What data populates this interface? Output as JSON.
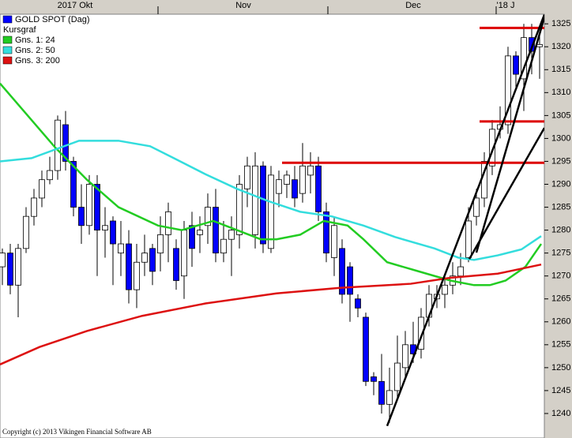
{
  "chart_data": {
    "type": "candlestick",
    "xlim": [
      -0.3,
      68.6
    ],
    "ylim": [
      1235.0,
      1327.1
    ],
    "yticks": [
      1240,
      1245,
      1250,
      1255,
      1260,
      1265,
      1270,
      1275,
      1280,
      1285,
      1290,
      1295,
      1300,
      1305,
      1310,
      1315,
      1320,
      1325
    ],
    "xticks": [
      19.7,
      41.2,
      62.5
    ],
    "month_labels": [
      {
        "value": 9.2,
        "label": "2017 Okt"
      },
      {
        "value": 30.5,
        "label": "Nov"
      },
      {
        "value": 52,
        "label": "Dec"
      },
      {
        "value": 63.7,
        "label": "'18 J"
      }
    ],
    "series": [
      {
        "name": "GOLD SPOT (Dag)",
        "color": "#0000ff",
        "up_color": "#ffffff",
        "open": [
          1272,
          1275,
          1268,
          1276,
          1283,
          1287,
          1291,
          1293,
          1303,
          1295,
          1285,
          1281,
          1290,
          1280,
          1282,
          1275,
          1277,
          1267,
          1273,
          1276,
          1275,
          1279,
          1276,
          1270,
          1281,
          1279,
          1281,
          1285,
          1275,
          1278,
          1279,
          1289,
          1279,
          1294,
          1276,
          1288,
          1290,
          1291,
          1288,
          1292,
          1294,
          1284,
          1274,
          1276,
          1272,
          1265,
          1261,
          1248,
          1247,
          1242,
          1245,
          1250,
          1255,
          1254,
          1261,
          1265,
          1266,
          1268,
          1270,
          1274,
          1283,
          1287,
          1294,
          1302,
          1303,
          1318,
          1313,
          1322,
          1320
        ],
        "high": [
          1276,
          1277,
          1277,
          1285,
          1289,
          1293,
          1296,
          1305,
          1306,
          1296,
          1290,
          1292,
          1292,
          1285,
          1283,
          1282,
          1280,
          1277,
          1279,
          1277,
          1283,
          1286,
          1278,
          1282,
          1284,
          1283,
          1288,
          1289,
          1282,
          1283,
          1292,
          1296,
          1297,
          1295,
          1294,
          1293,
          1293,
          1294,
          1299,
          1297,
          1296,
          1286,
          1283,
          1278,
          1273,
          1266,
          1262,
          1249,
          1253,
          1250,
          1257,
          1258,
          1260,
          1263,
          1268,
          1268,
          1270,
          1273,
          1275,
          1285,
          1289,
          1297,
          1304,
          1307,
          1320,
          1319,
          1325,
          1325,
          1323
        ],
        "low": [
          1268,
          1266,
          1261,
          1275,
          1281,
          1285,
          1290,
          1291,
          1293,
          1283,
          1277,
          1279,
          1270,
          1274,
          1268,
          1270,
          1264,
          1263,
          1270,
          1268,
          1271,
          1273,
          1267,
          1265,
          1272,
          1275,
          1277,
          1273,
          1273,
          1270,
          1276,
          1285,
          1276,
          1275,
          1275,
          1285,
          1287,
          1285,
          1286,
          1288,
          1282,
          1273,
          1270,
          1264,
          1260,
          1261,
          1246,
          1244,
          1240,
          1238,
          1243,
          1248,
          1251,
          1252,
          1259,
          1263,
          1263,
          1266,
          1268,
          1273,
          1281,
          1285,
          1292,
          1300,
          1301,
          1311,
          1306,
          1314,
          1313
        ],
        "close": [
          1275,
          1268,
          1276,
          1283,
          1287,
          1291,
          1293,
          1304,
          1295,
          1285,
          1281,
          1290,
          1280,
          1281,
          1277,
          1277,
          1267,
          1273,
          1275,
          1271,
          1279,
          1284,
          1269,
          1280,
          1276,
          1280,
          1285,
          1275,
          1278,
          1280,
          1290,
          1294,
          1294,
          1277,
          1292,
          1291,
          1292,
          1287,
          1294,
          1294,
          1284,
          1275,
          1281,
          1266,
          1266,
          1263,
          1247,
          1247,
          1242,
          1245,
          1251,
          1255,
          1253,
          1261,
          1266,
          1266,
          1268,
          1270,
          1272,
          1282,
          1287,
          1295,
          1302,
          1303,
          1318,
          1314,
          1322,
          1319,
          1320.5
        ]
      },
      {
        "name": "Gns. 1: 24",
        "color": "#22cc22",
        "x": [
          -0.3,
          6.7,
          10.7,
          14.7,
          19.7,
          22.7,
          26.7,
          29.7,
          32.7,
          34.7,
          37.7,
          40.7,
          43.7,
          45.7,
          48.7,
          52.7,
          56.7,
          59.7,
          61.7,
          63.7,
          66.2,
          68.2
        ],
        "values": [
          1312,
          1298,
          1291,
          1285,
          1281,
          1280,
          1282,
          1280,
          1278,
          1278,
          1279,
          1282,
          1281,
          1278,
          1273,
          1271,
          1269,
          1268,
          1268,
          1269,
          1272,
          1277
        ]
      },
      {
        "name": "Gns. 2: 50",
        "color": "#33dddd",
        "x": [
          -0.3,
          3.7,
          9.7,
          14.7,
          18.7,
          21.7,
          25.7,
          29.7,
          33.7,
          37.7,
          41.7,
          45.7,
          49.7,
          54.7,
          57.7,
          59.7,
          62.7,
          65.7,
          68.2
        ],
        "values": [
          1295,
          1295.7,
          1299.5,
          1299.5,
          1298.3,
          1295.7,
          1292.2,
          1289,
          1286.3,
          1284,
          1283,
          1281,
          1278.5,
          1276,
          1274,
          1273.5,
          1274.5,
          1275.8,
          1278.7
        ]
      },
      {
        "name": "Gns. 3: 200",
        "color": "#dd1111",
        "x": [
          -0.3,
          4.7,
          10.7,
          17.7,
          25.7,
          34.7,
          42.7,
          51.7,
          56.7,
          62.7,
          68.2
        ],
        "values": [
          1250.7,
          1254.5,
          1258,
          1261.3,
          1264,
          1266.2,
          1267.4,
          1268.3,
          1269.6,
          1270.5,
          1272.5
        ]
      }
    ],
    "legend_note": "Kursgraf",
    "hlines": [
      {
        "y": 1324.1,
        "x": [
          60.4,
          68.6
        ],
        "color": "#dd0000"
      },
      {
        "y": 1303.7,
        "x": [
          60.4,
          68.6
        ],
        "color": "#dd0000"
      },
      {
        "y": 1294.7,
        "x": [
          35.4,
          68.6
        ],
        "color": "#dd0000"
      }
    ],
    "trend_lines": [
      {
        "x": [
          48.7,
          68.6
        ],
        "y": [
          1237.3,
          1327.0
        ]
      },
      {
        "x": [
          59.1,
          68.6
        ],
        "y": [
          1273.7,
          1302.3
        ]
      },
      {
        "x": [
          60.0,
          68.6
        ],
        "y": [
          1275.1,
          1326.4
        ]
      }
    ],
    "copyright": "Copyright (c) 2013 Vikingen Financial Software AB"
  }
}
